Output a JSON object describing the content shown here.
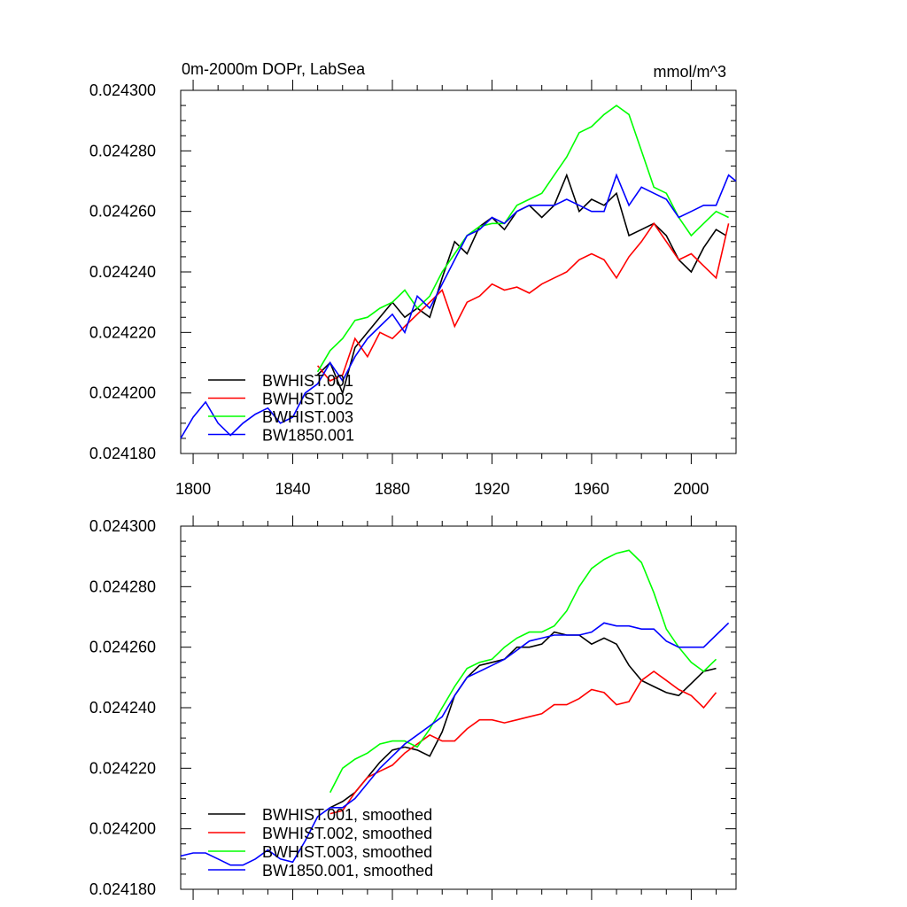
{
  "chart_data": [
    {
      "type": "line",
      "title_left": "0m-2000m DOPr, LabSea",
      "title_right": "mmol/m^3",
      "xlim": [
        1795,
        2018
      ],
      "ylim": [
        0.02418,
        0.0243
      ],
      "xticks": [
        1800,
        1840,
        1880,
        1920,
        1960,
        2000
      ],
      "xtick_labels": [
        "1800",
        "1840",
        "1880",
        "1920",
        "1960",
        "2000"
      ],
      "yticks": [
        0.02418,
        0.0242,
        0.02422,
        0.02424,
        0.02426,
        0.02428,
        0.0243
      ],
      "ytick_labels": [
        "0.024180",
        "0.024200",
        "0.024220",
        "0.024240",
        "0.024260",
        "0.024280",
        "0.024300"
      ],
      "legend_position": "bottom-left",
      "series": [
        {
          "name": "BWHIST.001",
          "color": "#000000",
          "x": [
            1850,
            1855,
            1860,
            1865,
            1870,
            1875,
            1880,
            1885,
            1890,
            1895,
            1900,
            1905,
            1910,
            1915,
            1920,
            1925,
            1930,
            1935,
            1940,
            1945,
            1950,
            1955,
            1960,
            1965,
            1970,
            1975,
            1980,
            1985,
            1990,
            1995,
            2000,
            2005,
            2010,
            2014
          ],
          "y": [
            0.024206,
            0.02421,
            0.0242,
            0.024215,
            0.02422,
            0.024225,
            0.02423,
            0.024225,
            0.024228,
            0.024225,
            0.024238,
            0.02425,
            0.024246,
            0.024255,
            0.024258,
            0.024254,
            0.02426,
            0.024262,
            0.024258,
            0.024262,
            0.024272,
            0.02426,
            0.024264,
            0.024262,
            0.024266,
            0.024252,
            0.024254,
            0.024256,
            0.024252,
            0.024244,
            0.02424,
            0.024248,
            0.024254,
            0.024252
          ]
        },
        {
          "name": "BWHIST.002",
          "color": "#ff0000",
          "x": [
            1850,
            1855,
            1860,
            1865,
            1870,
            1875,
            1880,
            1885,
            1890,
            1895,
            1900,
            1905,
            1910,
            1915,
            1920,
            1925,
            1930,
            1935,
            1940,
            1945,
            1950,
            1955,
            1960,
            1965,
            1970,
            1975,
            1980,
            1985,
            1990,
            1995,
            2000,
            2005,
            2010,
            2015
          ],
          "y": [
            0.024209,
            0.024204,
            0.024206,
            0.024218,
            0.024212,
            0.02422,
            0.024218,
            0.024222,
            0.024226,
            0.02423,
            0.024234,
            0.024222,
            0.02423,
            0.024232,
            0.024236,
            0.024234,
            0.024235,
            0.024233,
            0.024236,
            0.024238,
            0.02424,
            0.024244,
            0.024246,
            0.024244,
            0.024238,
            0.024245,
            0.02425,
            0.024256,
            0.02425,
            0.024244,
            0.024246,
            0.024242,
            0.024238,
            0.024256
          ]
        },
        {
          "name": "BWHIST.003",
          "color": "#00ff00",
          "x": [
            1850,
            1855,
            1860,
            1865,
            1870,
            1875,
            1880,
            1885,
            1890,
            1895,
            1900,
            1905,
            1910,
            1915,
            1920,
            1925,
            1930,
            1935,
            1940,
            1945,
            1950,
            1955,
            1960,
            1965,
            1970,
            1975,
            1980,
            1985,
            1990,
            1995,
            2000,
            2005,
            2010,
            2015
          ],
          "y": [
            0.024207,
            0.024214,
            0.024218,
            0.024224,
            0.024225,
            0.024228,
            0.02423,
            0.024234,
            0.024228,
            0.024232,
            0.02424,
            0.024246,
            0.024252,
            0.024255,
            0.024256,
            0.024256,
            0.024262,
            0.024264,
            0.024266,
            0.024272,
            0.024278,
            0.024286,
            0.024288,
            0.024292,
            0.024295,
            0.024292,
            0.02428,
            0.024268,
            0.024266,
            0.024258,
            0.024252,
            0.024256,
            0.02426,
            0.024258
          ]
        },
        {
          "name": "BW1850.001",
          "color": "#0000ff",
          "x": [
            1795,
            1800,
            1805,
            1810,
            1815,
            1820,
            1825,
            1830,
            1835,
            1840,
            1845,
            1850,
            1855,
            1860,
            1865,
            1870,
            1875,
            1880,
            1885,
            1890,
            1895,
            1900,
            1905,
            1910,
            1915,
            1920,
            1925,
            1930,
            1935,
            1940,
            1945,
            1950,
            1955,
            1960,
            1965,
            1970,
            1975,
            1980,
            1985,
            1990,
            1995,
            2000,
            2005,
            2010,
            2015,
            2018
          ],
          "y": [
            0.024185,
            0.024192,
            0.024197,
            0.02419,
            0.024186,
            0.02419,
            0.024193,
            0.024195,
            0.02419,
            0.024192,
            0.0242,
            0.024203,
            0.02421,
            0.024204,
            0.024212,
            0.024218,
            0.024222,
            0.024226,
            0.02422,
            0.024232,
            0.024228,
            0.024236,
            0.024244,
            0.024252,
            0.024254,
            0.024258,
            0.024256,
            0.02426,
            0.024262,
            0.024262,
            0.024262,
            0.024264,
            0.024262,
            0.02426,
            0.02426,
            0.024272,
            0.024262,
            0.024268,
            0.024266,
            0.024264,
            0.024258,
            0.02426,
            0.024262,
            0.024262,
            0.024272,
            0.02427
          ]
        }
      ]
    },
    {
      "type": "line",
      "xlim": [
        1795,
        2018
      ],
      "ylim": [
        0.02418,
        0.0243
      ],
      "xticks": [
        1800,
        1840,
        1880,
        1920,
        1960,
        2000
      ],
      "yticks": [
        0.02418,
        0.0242,
        0.02422,
        0.02424,
        0.02426,
        0.02428,
        0.0243
      ],
      "ytick_labels": [
        "0.024180",
        "0.024200",
        "0.024220",
        "0.024240",
        "0.024260",
        "0.024280",
        "0.024300"
      ],
      "legend_position": "bottom-left",
      "series": [
        {
          "name": "BWHIST.001, smoothed",
          "color": "#000000",
          "x": [
            1855,
            1860,
            1865,
            1870,
            1875,
            1880,
            1885,
            1890,
            1895,
            1900,
            1905,
            1910,
            1915,
            1920,
            1925,
            1930,
            1935,
            1940,
            1945,
            1950,
            1955,
            1960,
            1965,
            1970,
            1975,
            1980,
            1985,
            1990,
            1995,
            2000,
            2005,
            2010
          ],
          "y": [
            0.024207,
            0.024209,
            0.024212,
            0.024217,
            0.024222,
            0.024226,
            0.024227,
            0.024226,
            0.024224,
            0.024232,
            0.024244,
            0.02425,
            0.024254,
            0.024255,
            0.024256,
            0.02426,
            0.02426,
            0.024261,
            0.024265,
            0.024264,
            0.024264,
            0.024261,
            0.024263,
            0.024261,
            0.024254,
            0.024249,
            0.024247,
            0.024245,
            0.024244,
            0.024248,
            0.024252,
            0.024253
          ]
        },
        {
          "name": "BWHIST.002, smoothed",
          "color": "#ff0000",
          "x": [
            1855,
            1860,
            1865,
            1870,
            1875,
            1880,
            1885,
            1890,
            1895,
            1900,
            1905,
            1910,
            1915,
            1920,
            1925,
            1930,
            1935,
            1940,
            1945,
            1950,
            1955,
            1960,
            1965,
            1970,
            1975,
            1980,
            1985,
            1990,
            1995,
            2000,
            2005,
            2010
          ],
          "y": [
            0.024205,
            0.024206,
            0.024212,
            0.024217,
            0.024219,
            0.024221,
            0.024225,
            0.024228,
            0.024231,
            0.024229,
            0.024229,
            0.024233,
            0.024236,
            0.024236,
            0.024235,
            0.024236,
            0.024237,
            0.024238,
            0.024241,
            0.024241,
            0.024243,
            0.024246,
            0.024245,
            0.024241,
            0.024242,
            0.024249,
            0.024252,
            0.024249,
            0.024246,
            0.024244,
            0.02424,
            0.024245
          ]
        },
        {
          "name": "BWHIST.003, smoothed",
          "color": "#00ff00",
          "x": [
            1855,
            1860,
            1865,
            1870,
            1875,
            1880,
            1885,
            1890,
            1895,
            1900,
            1905,
            1910,
            1915,
            1920,
            1925,
            1930,
            1935,
            1940,
            1945,
            1950,
            1955,
            1960,
            1965,
            1970,
            1975,
            1980,
            1985,
            1990,
            1995,
            2000,
            2005,
            2010
          ],
          "y": [
            0.024212,
            0.02422,
            0.024223,
            0.024225,
            0.024228,
            0.024229,
            0.024229,
            0.024227,
            0.024233,
            0.02424,
            0.024247,
            0.024253,
            0.024255,
            0.024256,
            0.02426,
            0.024263,
            0.024265,
            0.024265,
            0.024267,
            0.024272,
            0.02428,
            0.024286,
            0.024289,
            0.024291,
            0.024292,
            0.024288,
            0.024278,
            0.024266,
            0.02426,
            0.024255,
            0.024252,
            0.024256
          ]
        },
        {
          "name": "BW1850.001, smoothed",
          "color": "#0000ff",
          "x": [
            1795,
            1800,
            1805,
            1810,
            1815,
            1820,
            1825,
            1830,
            1835,
            1840,
            1845,
            1850,
            1855,
            1860,
            1865,
            1870,
            1875,
            1880,
            1885,
            1890,
            1895,
            1900,
            1905,
            1910,
            1915,
            1920,
            1925,
            1930,
            1935,
            1940,
            1945,
            1950,
            1955,
            1960,
            1965,
            1970,
            1975,
            1980,
            1985,
            1990,
            1995,
            2000,
            2005,
            2010,
            2015
          ],
          "y": [
            0.024191,
            0.024192,
            0.024192,
            0.02419,
            0.024188,
            0.024188,
            0.02419,
            0.024193,
            0.02419,
            0.024189,
            0.024196,
            0.024204,
            0.024207,
            0.024207,
            0.02421,
            0.024215,
            0.02422,
            0.024224,
            0.024228,
            0.024231,
            0.024234,
            0.024237,
            0.024244,
            0.02425,
            0.024252,
            0.024254,
            0.024256,
            0.024259,
            0.024262,
            0.024263,
            0.024264,
            0.024264,
            0.024264,
            0.024265,
            0.024268,
            0.024267,
            0.024267,
            0.024266,
            0.024266,
            0.024262,
            0.02426,
            0.02426,
            0.02426,
            0.024264,
            0.024268
          ]
        }
      ]
    }
  ]
}
